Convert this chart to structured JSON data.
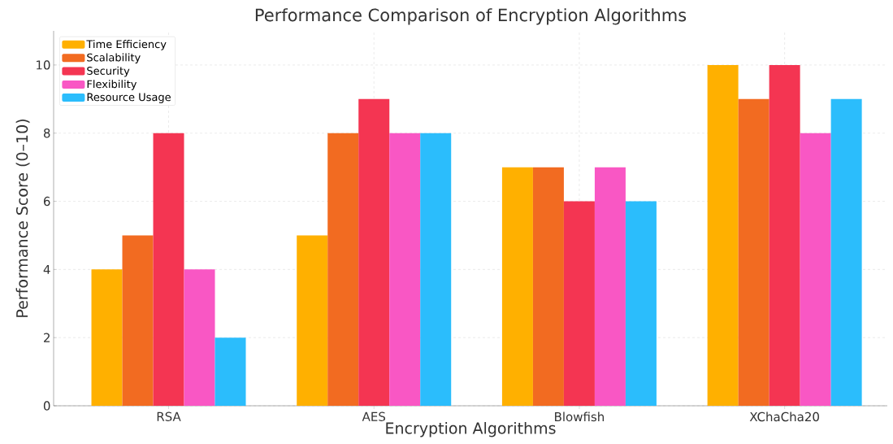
{
  "chart_data": {
    "type": "bar",
    "title": "Performance Comparison of Encryption Algorithms",
    "xlabel": "Encryption Algorithms",
    "ylabel": "Performance Score (0–10)",
    "categories": [
      "RSA",
      "AES",
      "Blowfish",
      "XChaCha20"
    ],
    "series": [
      {
        "name": "Time Efficiency",
        "color": "#ffb000",
        "values": [
          4,
          5,
          7,
          10
        ]
      },
      {
        "name": "Scalability",
        "color": "#f26b21",
        "values": [
          5,
          8,
          7,
          9
        ]
      },
      {
        "name": "Security",
        "color": "#f43552",
        "values": [
          8,
          9,
          6,
          10
        ]
      },
      {
        "name": "Flexibility",
        "color": "#f957c4",
        "values": [
          4,
          8,
          7,
          8
        ]
      },
      {
        "name": "Resource Usage",
        "color": "#2bbdfc",
        "values": [
          2,
          8,
          6,
          9
        ]
      }
    ],
    "ylim": [
      0,
      11
    ],
    "yticks": [
      0,
      2,
      4,
      6,
      8,
      10
    ],
    "grid": true,
    "legend": "top left"
  }
}
